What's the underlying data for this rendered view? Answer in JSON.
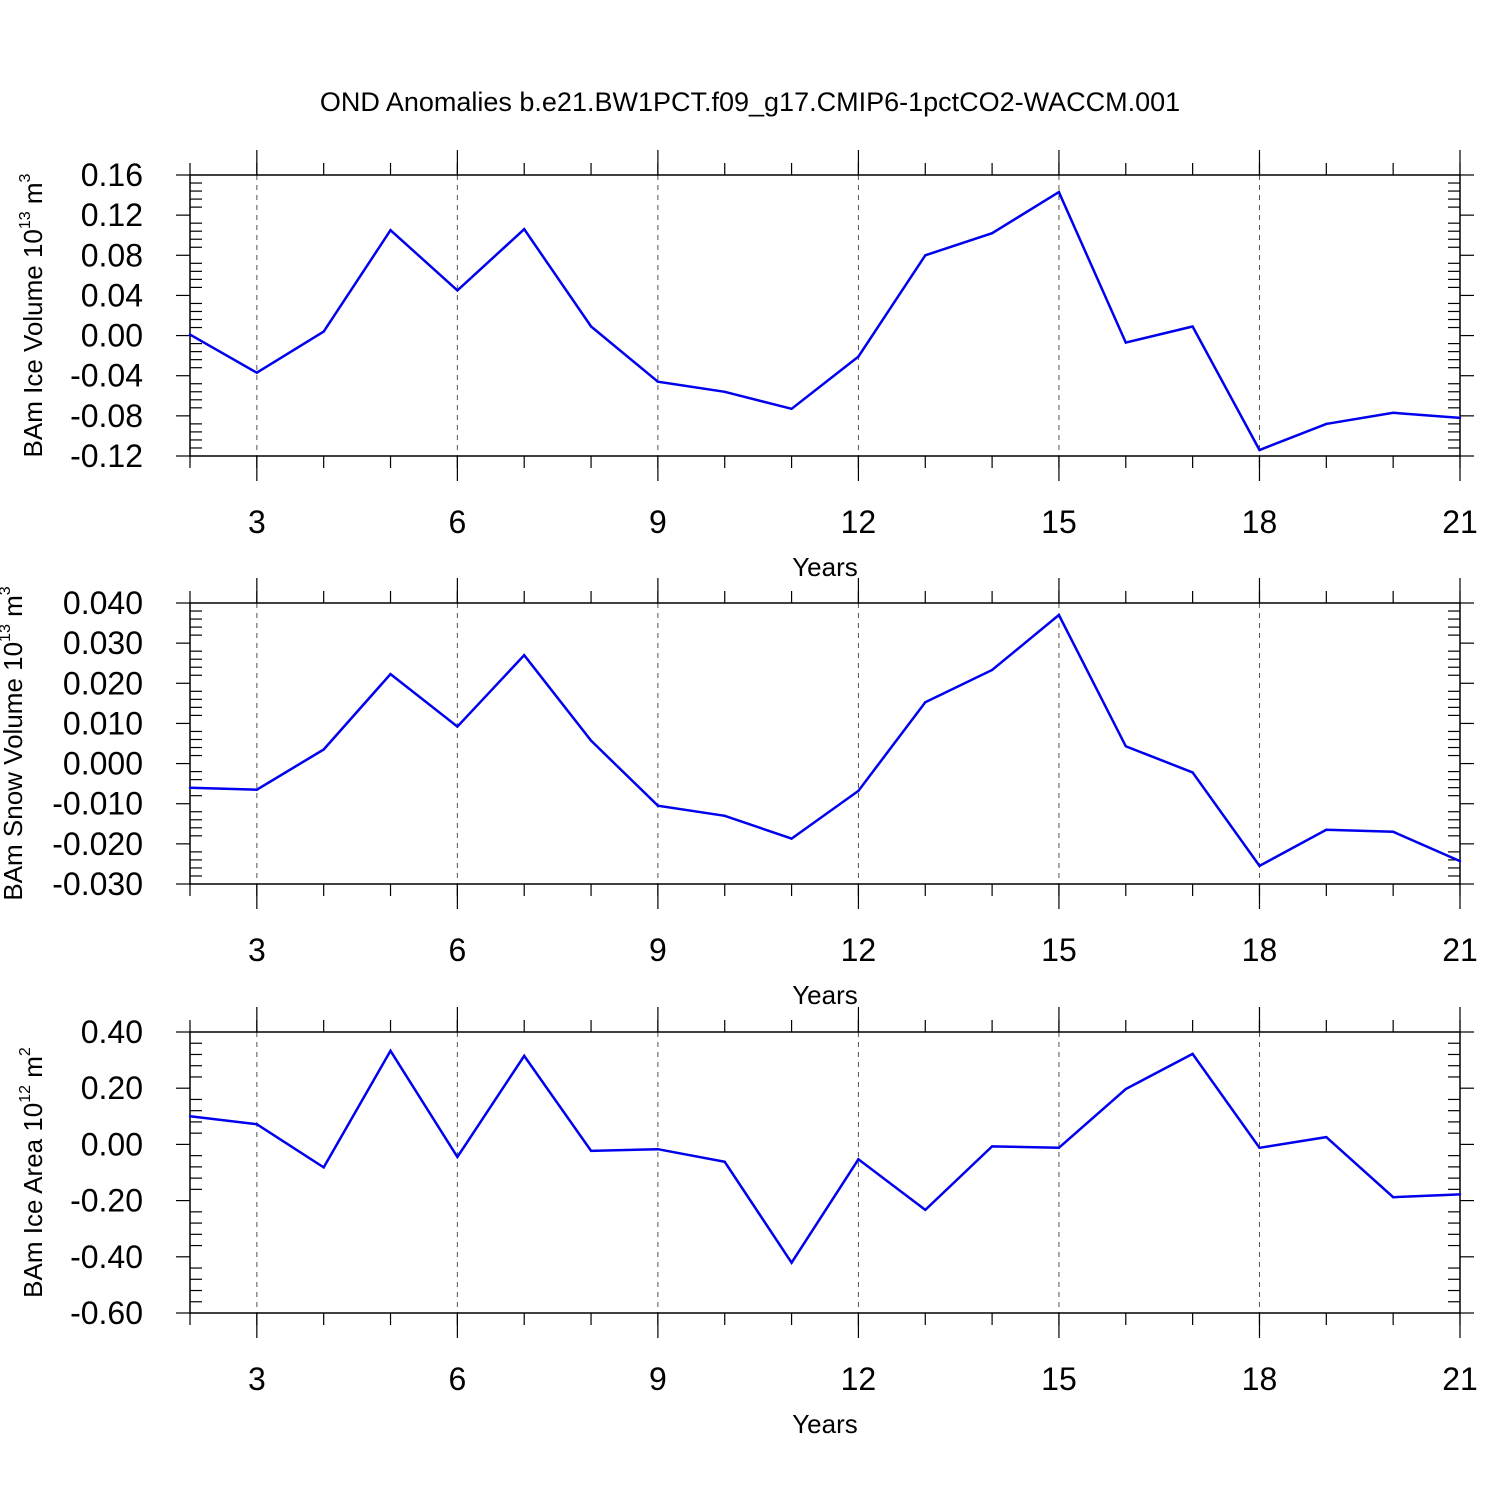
{
  "title": "OND Anomalies b.e21.BW1PCT.f09_g17.CMIP6-1pctCO2-WACCM.001",
  "line_color": "#0000ee",
  "chart_data": [
    {
      "type": "line",
      "ylabel": {
        "main": "BAm Ice Volume 10",
        "exp": "13",
        "unit": " m",
        "unit_exp": "3"
      },
      "xlabel": "Years",
      "xlim": [
        2,
        21
      ],
      "xticks": [
        "3",
        "6",
        "9",
        "12",
        "15",
        "18",
        "21"
      ],
      "ylim": [
        -0.12,
        0.16
      ],
      "yticks": [
        "-0.12",
        "-0.08",
        "-0.04",
        "0.00",
        "0.04",
        "0.08",
        "0.12",
        "0.16"
      ],
      "x": [
        2,
        3,
        4,
        5,
        6,
        7,
        8,
        9,
        10,
        11,
        12,
        13,
        14,
        15,
        16,
        17,
        18,
        19,
        20,
        21
      ],
      "values": [
        0.001,
        -0.037,
        0.004,
        0.105,
        0.045,
        0.106,
        0.009,
        -0.046,
        -0.056,
        -0.073,
        -0.021,
        0.08,
        0.102,
        0.143,
        -0.007,
        0.009,
        -0.114,
        -0.088,
        -0.077,
        -0.082
      ]
    },
    {
      "type": "line",
      "ylabel": {
        "main": "BAm Snow Volume 10",
        "exp": "13",
        "unit": " m",
        "unit_exp": "3"
      },
      "xlabel": "Years",
      "xlim": [
        2,
        21
      ],
      "xticks": [
        "3",
        "6",
        "9",
        "12",
        "15",
        "18",
        "21"
      ],
      "ylim": [
        -0.03,
        0.04
      ],
      "yticks": [
        "-0.030",
        "-0.020",
        "-0.010",
        "0.000",
        "0.010",
        "0.020",
        "0.030",
        "0.040"
      ],
      "x": [
        2,
        3,
        4,
        5,
        6,
        7,
        8,
        9,
        10,
        11,
        12,
        13,
        14,
        15,
        16,
        17,
        18,
        19,
        20,
        21
      ],
      "values": [
        -0.006,
        -0.0065,
        0.0035,
        0.0223,
        0.0092,
        0.027,
        0.0057,
        -0.0105,
        -0.013,
        -0.0187,
        -0.0068,
        0.0153,
        0.0233,
        0.037,
        0.0043,
        -0.0022,
        -0.0255,
        -0.0165,
        -0.017,
        -0.0243
      ]
    },
    {
      "type": "line",
      "ylabel": {
        "main": "BAm Ice Area 10",
        "exp": "12",
        "unit": " m",
        "unit_exp": "2"
      },
      "xlabel": "Years",
      "xlim": [
        2,
        21
      ],
      "xticks": [
        "3",
        "6",
        "9",
        "12",
        "15",
        "18",
        "21"
      ],
      "ylim": [
        -0.6,
        0.4
      ],
      "yticks": [
        "-0.60",
        "-0.40",
        "-0.20",
        "0.00",
        "0.20",
        "0.40"
      ],
      "x": [
        2,
        3,
        4,
        5,
        6,
        7,
        8,
        9,
        10,
        11,
        12,
        13,
        14,
        15,
        16,
        17,
        18,
        19,
        20,
        21
      ],
      "values": [
        0.1,
        0.072,
        -0.082,
        0.333,
        -0.045,
        0.315,
        -0.023,
        -0.017,
        -0.062,
        -0.421,
        -0.053,
        -0.233,
        -0.007,
        -0.012,
        0.197,
        0.322,
        -0.012,
        0.026,
        -0.188,
        -0.178
      ]
    }
  ]
}
